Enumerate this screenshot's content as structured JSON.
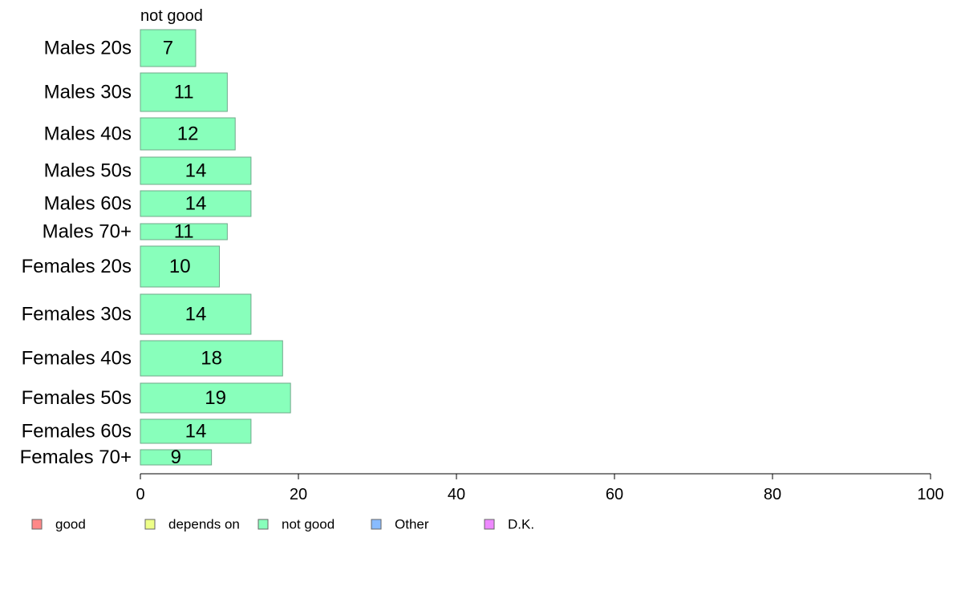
{
  "chart_data": {
    "type": "bar",
    "orientation": "horizontal",
    "panel_title": "not good",
    "categories": [
      "Males 20s",
      "Males 30s",
      "Males 40s",
      "Males 50s",
      "Males 60s",
      "Males 70+",
      "Females 20s",
      "Females 30s",
      "Females 40s",
      "Females 50s",
      "Females 60s",
      "Females 70+"
    ],
    "values": [
      7,
      11,
      12,
      14,
      14,
      11,
      10,
      14,
      18,
      19,
      14,
      9
    ],
    "value_labels": [
      "7",
      "11",
      "12",
      "14",
      "14",
      "11",
      "10",
      "14",
      "18",
      "19",
      "14",
      "9"
    ],
    "xlim": [
      0,
      100
    ],
    "xticks": [
      "0",
      "20",
      "40",
      "60",
      "80",
      "100"
    ],
    "grid": false,
    "bar_color": "#88ffbb",
    "legend_placement": "bottom",
    "legend": [
      {
        "label": "good",
        "color": "#ff8888"
      },
      {
        "label": "depends on",
        "color": "#eeff88"
      },
      {
        "label": "not good",
        "color": "#88ffbb"
      },
      {
        "label": "Other",
        "color": "#88bbff"
      },
      {
        "label": "D.K.",
        "color": "#ee88ff"
      }
    ]
  }
}
